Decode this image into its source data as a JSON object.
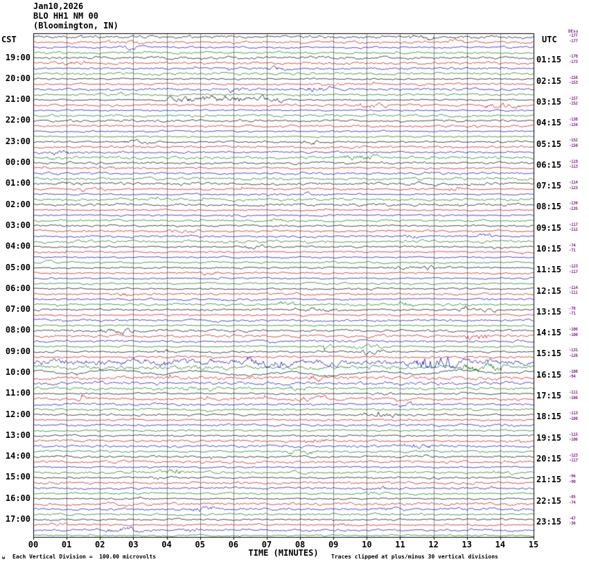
{
  "header": {
    "date": "Jan10,2026",
    "station": "BLO HH1 NM 00",
    "location": "(Bloomington, IN)"
  },
  "axes": {
    "left_label": "CST",
    "right_label": "UTC",
    "x_label": "TIME (MINUTES)",
    "left_times": [
      "19:00",
      "20:00",
      "21:00",
      "22:00",
      "23:00",
      "00:00",
      "01:00",
      "02:00",
      "03:00",
      "04:00",
      "05:00",
      "06:00",
      "07:00",
      "08:00",
      "09:00",
      "10:00",
      "11:00",
      "12:00",
      "13:00",
      "14:00",
      "15:00",
      "16:00",
      "17:00"
    ],
    "right_times": [
      "01:15",
      "02:15",
      "03:15",
      "04:15",
      "05:15",
      "06:15",
      "07:15",
      "08:15",
      "09:15",
      "10:15",
      "11:15",
      "12:15",
      "13:15",
      "14:15",
      "15:15",
      "16:15",
      "17:15",
      "18:15",
      "19:15",
      "20:15",
      "21:15",
      "22:15",
      "23:15"
    ],
    "x_ticks": [
      "00",
      "01",
      "02",
      "03",
      "04",
      "05",
      "06",
      "07",
      "08",
      "09",
      "10",
      "11",
      "12",
      "13",
      "14",
      "15"
    ]
  },
  "right_margin": {
    "top_label": "DEss",
    "values": [
      "-177",
      "-177",
      "-170",
      "-173",
      "-158",
      "-153",
      "-157",
      "-152",
      "-138",
      "-134",
      "-152",
      "-150",
      "-119",
      "-113",
      "-114",
      "-123",
      "-139",
      "-135",
      "-117",
      "-112",
      "-74",
      "-71",
      "-123",
      "-117",
      "-114",
      "-111",
      "-78",
      "-71",
      "-106",
      "-100",
      "-131",
      "-126",
      "-100",
      "-94",
      "-111",
      "-106",
      "-113",
      "-108",
      "-115",
      "-106",
      "-123",
      "-117",
      "-96",
      "-90",
      "-85",
      "-74",
      "-47",
      "-36"
    ]
  },
  "footer": {
    "corner_mark": "w",
    "left_note": "Each Vertical Division =  100.00 microvolts",
    "right_note": "Traces clipped at plus/minus 30 vertical divisions"
  },
  "chart_data": {
    "type": "line",
    "subtype": "helicorder-seismogram",
    "title": "BLO HH1 NM 00 (Bloomington, IN) Jan10,2026",
    "xlabel": "TIME (MINUTES)",
    "x_range_minutes": [
      0,
      15
    ],
    "minutes_per_line": 15,
    "rows": 96,
    "first_row_start_cst": "18:00",
    "row_interval_minutes": 15,
    "timezone_left": "CST",
    "timezone_right": "UTC",
    "division_microvolts": 100.0,
    "clip_divisions": 30,
    "grid": "vertical lines every 1 minute",
    "trace_colors_cycle": [
      "#000000",
      "#cc0000",
      "#0000bb",
      "#007700"
    ],
    "content_note": "Continuous ambient seismic noise traces; each horizontal line spans 15 minutes, colors cycle black/red/blue/green per quarter hour",
    "events": [
      {
        "time_cst": "21:00",
        "start_minute": 4.0,
        "end_minute": 7.5,
        "kind": "burst",
        "description": "high-frequency noise burst on black 21:00 trace"
      },
      {
        "time_cst": "10:00",
        "start_minute": 0,
        "end_minute": 15,
        "kind": "low-freq",
        "description": "large slow oscillations across the 10:00 black trace"
      },
      {
        "time_cst": "09:30",
        "start_minute": 0,
        "end_minute": 15,
        "kind": "elevated",
        "description": "elevated microseismic noise"
      },
      {
        "time_cst": "09:45",
        "start_minute": 0,
        "end_minute": 15,
        "kind": "elevated",
        "description": "elevated microseismic noise"
      },
      {
        "time_cst": "10:15",
        "start_minute": 0,
        "end_minute": 15,
        "kind": "elevated",
        "description": "elevated microseismic noise"
      },
      {
        "time_cst": "10:30",
        "start_minute": 0,
        "end_minute": 15,
        "kind": "elevated",
        "description": "elevated microseismic noise"
      }
    ]
  }
}
